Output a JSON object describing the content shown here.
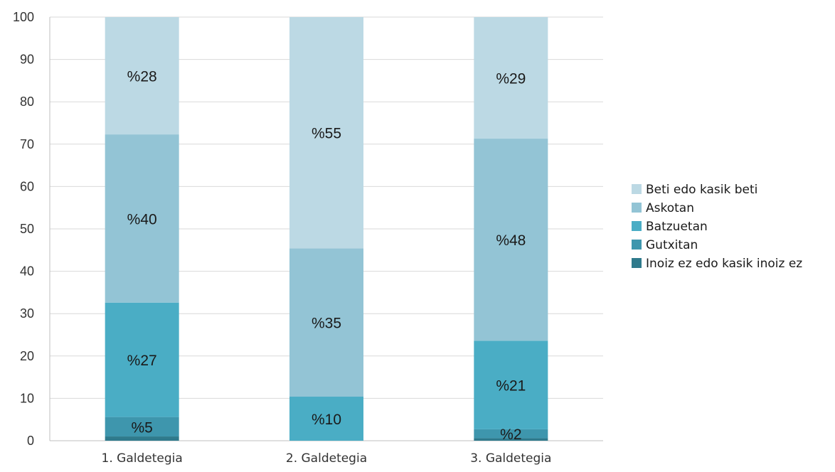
{
  "chart_data": {
    "type": "bar",
    "stacked": true,
    "categories": [
      "1. Galdetegia",
      "2. Galdetegia",
      "3. Galdetegia"
    ],
    "series": [
      {
        "name": "Inoiz ez edo kasik inoiz ez",
        "values": [
          1,
          0,
          0.6
        ],
        "color": "#2f7a8c"
      },
      {
        "name": "Gutxitan",
        "values": [
          4.6,
          0,
          2.1
        ],
        "color": "#3e96ad"
      },
      {
        "name": "Batzuetan",
        "values": [
          27,
          10.4,
          20.9
        ],
        "color": "#4aadc5"
      },
      {
        "name": "Askotan",
        "values": [
          39.7,
          35,
          47.7
        ],
        "color": "#93c4d5"
      },
      {
        "name": "Beti edo kasik beti",
        "values": [
          27.7,
          54.6,
          28.7
        ],
        "color": "#bcd9e4"
      }
    ],
    "data_labels": [
      {
        "category": "1. Galdetegia",
        "series": "Gutxitan",
        "text": "%5"
      },
      {
        "category": "1. Galdetegia",
        "series": "Batzuetan",
        "text": "%27"
      },
      {
        "category": "1. Galdetegia",
        "series": "Askotan",
        "text": "%40"
      },
      {
        "category": "1. Galdetegia",
        "series": "Beti edo kasik beti",
        "text": "%28"
      },
      {
        "category": "2. Galdetegia",
        "series": "Batzuetan",
        "text": "%10"
      },
      {
        "category": "2. Galdetegia",
        "series": "Askotan",
        "text": "%35"
      },
      {
        "category": "2. Galdetegia",
        "series": "Beti edo kasik beti",
        "text": "%55"
      },
      {
        "category": "3. Galdetegia",
        "series": "Gutxitan",
        "text": "%2"
      },
      {
        "category": "3. Galdetegia",
        "series": "Batzuetan",
        "text": "%21"
      },
      {
        "category": "3. Galdetegia",
        "series": "Askotan",
        "text": "%48"
      },
      {
        "category": "3. Galdetegia",
        "series": "Beti edo kasik beti",
        "text": "%29"
      }
    ],
    "ylim": [
      0,
      100
    ],
    "yticks": [
      "0",
      "10",
      "20",
      "30",
      "40",
      "50",
      "60",
      "70",
      "80",
      "90",
      "100"
    ],
    "grid": true,
    "legend_position": "right",
    "legend_order": [
      "Beti edo kasik beti",
      "Askotan",
      "Batzuetan",
      "Gutxitan",
      "Inoiz ez edo kasik inoiz ez"
    ]
  }
}
